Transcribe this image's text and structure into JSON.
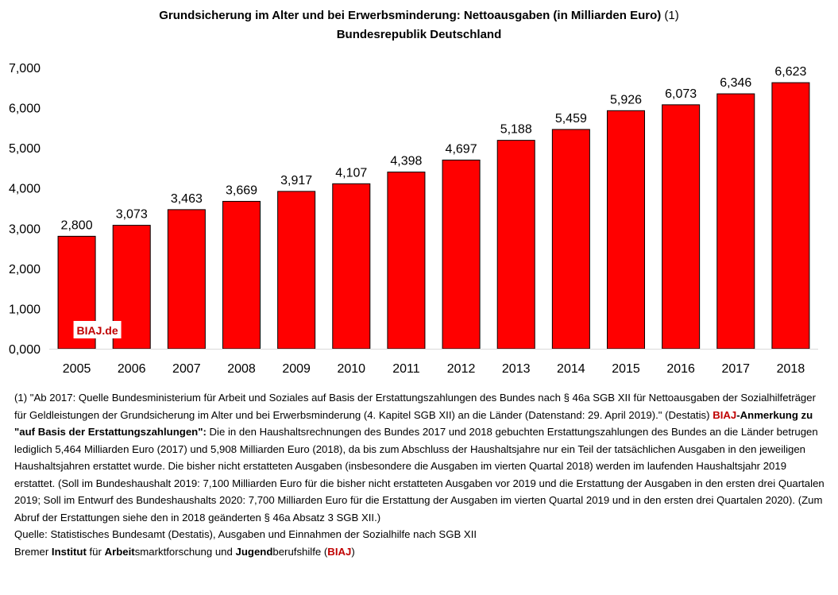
{
  "title": {
    "line1_bold": "Grundsicherung im Alter und bei Erwerbsminderung: Nettoausgaben (in Milliarden Euro)",
    "line1_suffix": " (1)",
    "line2": "Bundesrepublik Deutschland"
  },
  "watermark": "BIAJ.de",
  "colors": {
    "bar": "#ff0000",
    "accent": "#c00000",
    "text": "#000000"
  },
  "chart_data": {
    "type": "bar",
    "categories": [
      "2005",
      "2006",
      "2007",
      "2008",
      "2009",
      "2010",
      "2011",
      "2012",
      "2013",
      "2014",
      "2015",
      "2016",
      "2017",
      "2018"
    ],
    "values": [
      2.8,
      3.073,
      3.463,
      3.669,
      3.917,
      4.107,
      4.398,
      4.697,
      5.188,
      5.459,
      5.926,
      6.073,
      6.346,
      6.623
    ],
    "value_labels": [
      "2,800",
      "3,073",
      "3,463",
      "3,669",
      "3,917",
      "4,107",
      "4,398",
      "4,697",
      "5,188",
      "5,459",
      "5,926",
      "6,073",
      "6,346",
      "6,623"
    ],
    "y_ticks": [
      0,
      1,
      2,
      3,
      4,
      5,
      6,
      7
    ],
    "y_tick_labels": [
      "0,000",
      "1,000",
      "2,000",
      "3,000",
      "4,000",
      "5,000",
      "6,000",
      "7,000"
    ],
    "ylim": [
      0,
      7
    ],
    "grid": false,
    "legend": "none"
  },
  "footnote": {
    "p1_a": "(1) \"Ab 2017: Quelle Bundesministerium für Arbeit und Soziales auf Basis der Erstattungszahlungen des Bundes nach § 46a SGB XII für Nettoausgaben der Sozialhilfeträger für Geldleistungen der Grundsicherung im Alter und bei Erwerbsminderung (4. Kapitel SGB XII) an die Länder (Datenstand: 29. April 2019).\" (Destatis) ",
    "p1_biaj": "BIAJ",
    "p1_anm": "-Anmerkung zu \"auf Basis der Erstattungszahlungen\":",
    "p1_b": " Die in den Haushaltsrechnungen des Bundes 2017 und 2018 gebuchten Erstattungszahlungen des Bundes an die Länder betrugen lediglich 5,464 Milliarden Euro (2017) und 5,908 Milliarden Euro (2018), da bis zum Abschluss der Haushaltsjahre nur ein Teil der tatsächlichen Ausgaben in den jeweiligen Haushaltsjahren erstattet wurde. Die bisher nicht erstatteten Ausgaben (insbesondere die Ausgaben im vierten Quartal 2018) werden im laufenden Haushaltsjahr 2019 erstattet. (Soll im Bundeshaushalt 2019: 7,100 Milliarden Euro für die bisher nicht erstatteten Ausgaben vor 2019 und die Erstattung der Ausgaben in den ersten drei Quartalen 2019; Soll im Entwurf des Bundeshaushalts 2020: 7,700 Milliarden Euro für die Erstattung der Ausgaben im vierten Quartal 2019 und in den ersten drei Quartalen 2020). (Zum Abruf der Erstattungen siehe den in 2018 geänderten § 46a Absatz 3 SGB XII.)",
    "source": "Quelle: Statistisches Bundesamt (Destatis), Ausgaben und Einnahmen der Sozialhilfe nach SGB XII",
    "org_1": "Bremer ",
    "org_2": "Institut",
    "org_3": " für ",
    "org_4": "Arbeit",
    "org_5": "smarktforschung und ",
    "org_6": "Jugend",
    "org_7": "berufshilfe (",
    "org_8": "BIAJ",
    "org_9": ")"
  }
}
